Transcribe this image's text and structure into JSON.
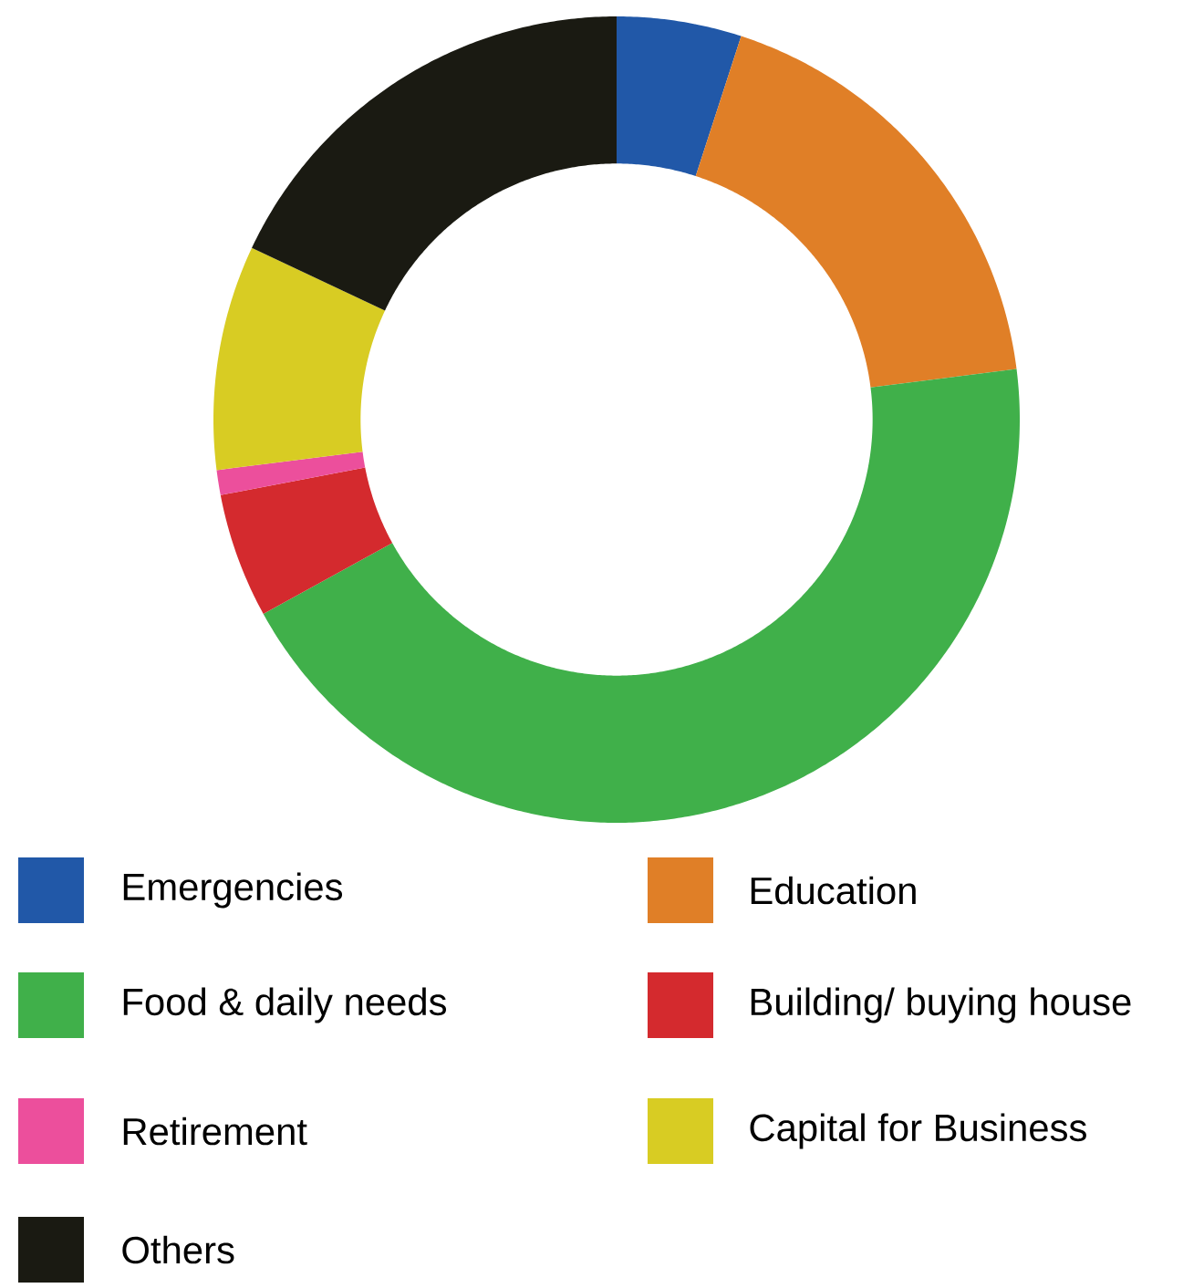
{
  "chart_data": {
    "type": "donut",
    "categories": [
      "Emergencies",
      "Education",
      "Food & daily needs",
      "Building/ buying house",
      "Retirement",
      "Capital for Business",
      "Others"
    ],
    "values": [
      5,
      18,
      44,
      5,
      1,
      9,
      18
    ],
    "colors": [
      "#2158a8",
      "#e07f27",
      "#40b04a",
      "#d42a2e",
      "#ec4f9c",
      "#d8cc23",
      "#1a1a12"
    ],
    "legend": "bottom"
  }
}
